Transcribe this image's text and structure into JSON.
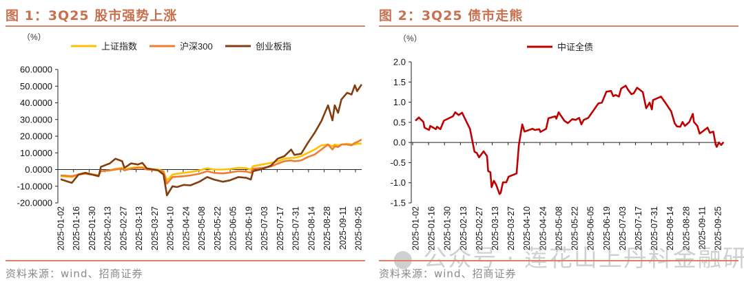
{
  "panels": [
    {
      "title": "图 1：3Q25 股市强势上涨",
      "source": "资料来源：wind、招商证券"
    },
    {
      "title": "图 2：3Q25 债市走熊",
      "source": "资料来源：wind、招商证券"
    }
  ],
  "watermark": "公众号 · 莲花山上丹科金融研究",
  "chart_data": [
    {
      "type": "line",
      "unit_label": "（%）",
      "ylim": [
        -20,
        60
      ],
      "yticks": [
        "60.0000",
        "50.0000",
        "40.0000",
        "30.0000",
        "20.0000",
        "10.0000",
        "0.0000",
        "-10.0000",
        "-20.0000"
      ],
      "ytick_values": [
        60,
        50,
        40,
        30,
        20,
        10,
        0,
        -10,
        -20
      ],
      "xticks": [
        "2025-01-02",
        "2025-01-16",
        "2025-01-30",
        "2025-02-13",
        "2025-02-27",
        "2025-03-13",
        "2025-03-27",
        "2025-04-10",
        "2025-04-24",
        "2025-05-08",
        "2025-05-22",
        "2025-06-05",
        "2025-06-19",
        "2025-07-03",
        "2025-07-17",
        "2025-07-31",
        "2025-08-14",
        "2025-08-28",
        "2025-09-11",
        "2025-09-25"
      ],
      "legend": "top",
      "grid": false,
      "x": [
        "2025-01-02",
        "2025-01-12",
        "2025-01-18",
        "2025-01-24",
        "2025-02-05",
        "2025-02-07",
        "2025-02-15",
        "2025-02-20",
        "2025-02-26",
        "2025-02-28",
        "2025-03-06",
        "2025-03-12",
        "2025-03-16",
        "2025-03-20",
        "2025-03-30",
        "2025-04-04",
        "2025-04-07",
        "2025-04-12",
        "2025-04-16",
        "2025-04-22",
        "2025-04-28",
        "2025-05-06",
        "2025-05-13",
        "2025-05-19",
        "2025-05-27",
        "2025-06-02",
        "2025-06-10",
        "2025-06-17",
        "2025-06-21",
        "2025-06-23",
        "2025-07-01",
        "2025-07-09",
        "2025-07-15",
        "2025-07-21",
        "2025-07-27",
        "2025-07-30",
        "2025-08-05",
        "2025-08-11",
        "2025-08-17",
        "2025-08-23",
        "2025-08-29",
        "2025-09-02",
        "2025-09-04",
        "2025-09-07",
        "2025-09-10",
        "2025-09-15",
        "2025-09-19",
        "2025-09-22",
        "2025-09-24",
        "2025-09-28"
      ],
      "series": [
        {
          "name": "上证指数",
          "color": "#FFC000",
          "values": [
            -4,
            -4.5,
            -3,
            -2,
            -3.5,
            -1,
            -0.5,
            0.5,
            1,
            0,
            1,
            1.5,
            1.5,
            0.5,
            0,
            -1,
            -6.5,
            -3,
            -2.5,
            -2,
            -1.5,
            -0.5,
            0.8,
            0,
            0,
            0.3,
            1,
            0.8,
            0,
            2,
            3,
            4,
            5,
            6.5,
            7,
            7,
            8,
            10,
            12,
            14.5,
            15,
            14,
            15,
            14.5,
            15,
            15.5,
            15,
            15,
            15.5,
            15.5
          ]
        },
        {
          "name": "沪深300",
          "color": "#ED7D31",
          "values": [
            -3.5,
            -4,
            -3,
            -2.5,
            -3.5,
            -1,
            -0.5,
            0,
            0.5,
            -0.5,
            0.5,
            1,
            1,
            0,
            -0.5,
            -1.5,
            -8.5,
            -4.5,
            -4.3,
            -4,
            -3.5,
            -2.5,
            -1,
            -2,
            -2.3,
            -1.8,
            -1,
            -1.2,
            -2,
            0.5,
            1,
            1.8,
            3.5,
            5,
            5.5,
            5,
            5.5,
            7.5,
            9,
            12,
            15,
            12,
            14,
            13.5,
            15,
            15,
            14.5,
            16,
            16.5,
            18
          ]
        },
        {
          "name": "创业板指",
          "color": "#843C0C",
          "values": [
            -5.8,
            -8,
            -3,
            -2,
            -4,
            1.6,
            3.7,
            6.5,
            5,
            1,
            3.7,
            3,
            4,
            0.7,
            -0.4,
            -3,
            -15.5,
            -10,
            -10.5,
            -9.2,
            -9.5,
            -7.3,
            -4.5,
            -6,
            -7.3,
            -6.5,
            -4.5,
            -5,
            -6,
            -1,
            0.3,
            2.3,
            6.5,
            8,
            12,
            8.8,
            9.5,
            16,
            22,
            29,
            38.5,
            29.5,
            38.5,
            34,
            42,
            46,
            45,
            50.5,
            47,
            51
          ]
        }
      ]
    },
    {
      "type": "line",
      "unit_label": "（%）",
      "ylim": [
        -1.5,
        2.0
      ],
      "yticks": [
        "2.0",
        "1.5",
        "1.0",
        "0.5",
        "0.0",
        "-0.5",
        "-1.0",
        "-1.5"
      ],
      "ytick_values": [
        2,
        1.5,
        1,
        0.5,
        0,
        -0.5,
        -1,
        -1.5
      ],
      "xticks": [
        "2025-01-02",
        "2025-01-16",
        "2025-01-30",
        "2025-02-13",
        "2025-02-27",
        "2025-03-13",
        "2025-03-27",
        "2025-04-10",
        "2025-04-24",
        "2025-05-08",
        "2025-05-22",
        "2025-06-05",
        "2025-06-19",
        "2025-07-03",
        "2025-07-17",
        "2025-07-31",
        "2025-08-14",
        "2025-08-28",
        "2025-09-11",
        "2025-09-25"
      ],
      "legend": "top",
      "grid": false,
      "x": [
        "2025-01-02",
        "2025-01-05",
        "2025-01-09",
        "2025-01-10",
        "2025-01-14",
        "2025-01-15",
        "2025-01-20",
        "2025-01-21",
        "2025-01-24",
        "2025-01-27",
        "2025-02-04",
        "2025-02-06",
        "2025-02-09",
        "2025-02-12",
        "2025-02-16",
        "2025-02-19",
        "2025-02-23",
        "2025-02-25",
        "2025-02-27",
        "2025-03-03",
        "2025-03-06",
        "2025-03-07",
        "2025-03-09",
        "2025-03-10",
        "2025-03-12",
        "2025-03-14",
        "2025-03-17",
        "2025-03-18",
        "2025-03-20",
        "2025-03-23",
        "2025-03-25",
        "2025-04-01",
        "2025-04-03",
        "2025-04-06",
        "2025-04-08",
        "2025-04-15",
        "2025-04-17",
        "2025-04-21",
        "2025-04-22",
        "2025-04-27",
        "2025-04-29",
        "2025-05-05",
        "2025-05-06",
        "2025-05-08",
        "2025-05-13",
        "2025-05-16",
        "2025-05-20",
        "2025-05-23",
        "2025-05-26",
        "2025-05-28",
        "2025-05-30",
        "2025-06-03",
        "2025-06-07",
        "2025-06-12",
        "2025-06-15",
        "2025-06-19",
        "2025-06-23",
        "2025-06-25",
        "2025-06-27",
        "2025-06-30",
        "2025-07-02",
        "2025-07-06",
        "2025-07-08",
        "2025-07-11",
        "2025-07-13",
        "2025-07-16",
        "2025-07-21",
        "2025-07-24",
        "2025-07-27",
        "2025-07-29",
        "2025-07-30",
        "2025-08-06",
        "2025-08-11",
        "2025-08-15",
        "2025-08-18",
        "2025-08-20",
        "2025-08-23",
        "2025-08-25",
        "2025-08-27",
        "2025-08-31",
        "2025-09-03",
        "2025-09-04",
        "2025-09-07",
        "2025-09-09",
        "2025-09-12",
        "2025-09-16",
        "2025-09-18",
        "2025-09-21",
        "2025-09-23",
        "2025-09-24",
        "2025-09-26",
        "2025-09-28",
        "2025-09-30"
      ],
      "series": [
        {
          "name": "中证全债",
          "color": "#C00000",
          "values": [
            0.54,
            0.62,
            0.51,
            0.37,
            0.31,
            0.41,
            0.33,
            0.39,
            0.33,
            0.54,
            0.65,
            0.75,
            0.68,
            0.74,
            0.51,
            0.34,
            -0.23,
            -0.26,
            -0.37,
            -0.22,
            -0.34,
            -0.71,
            -0.74,
            -1.11,
            -0.95,
            -1.05,
            -1.28,
            -1.25,
            -0.99,
            -0.99,
            -0.85,
            -0.77,
            -0.06,
            0.45,
            0.27,
            0.34,
            0.31,
            0.33,
            0.26,
            0.34,
            0.6,
            0.65,
            0.59,
            0.75,
            0.54,
            0.48,
            0.58,
            0.56,
            0.61,
            0.45,
            0.56,
            0.61,
            0.77,
            0.97,
            0.99,
            1.26,
            1.28,
            1.15,
            1.18,
            1.14,
            1.34,
            1.41,
            1.31,
            1.2,
            1.22,
            1.36,
            1.25,
            0.85,
            0.99,
            0.82,
            1.05,
            1.14,
            0.94,
            0.77,
            0.48,
            0.4,
            0.39,
            0.51,
            0.41,
            0.51,
            0.71,
            0.51,
            0.41,
            0.22,
            0.28,
            0.37,
            0.24,
            0.27,
            -0.03,
            -0.11,
            0.0,
            -0.06,
            0.01
          ]
        }
      ]
    }
  ]
}
